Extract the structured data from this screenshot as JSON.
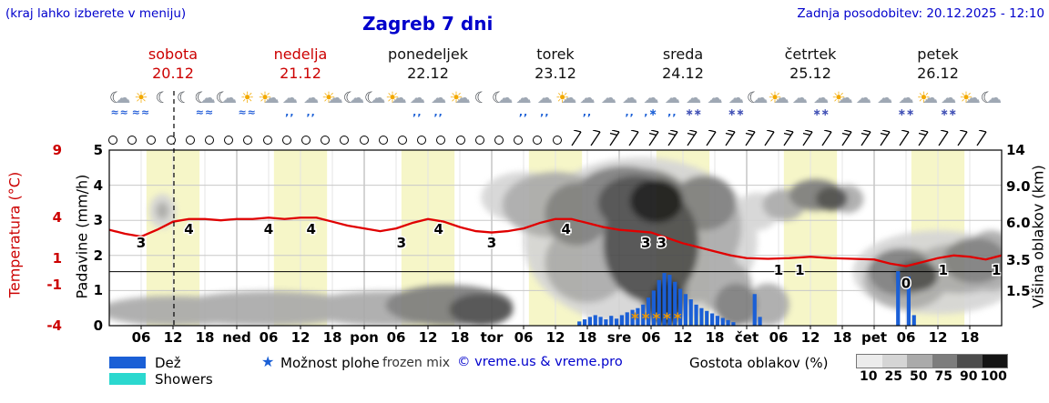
{
  "header": {
    "hint": "(kraj lahko izberete v meniju)",
    "title": "Zagreb 7 dni",
    "updated": "Zadnja posodobitev: 20.12.2025 - 12:10"
  },
  "days": [
    {
      "name": "sobota",
      "date": "20.12",
      "weekend": true
    },
    {
      "name": "nedelja",
      "date": "21.12",
      "weekend": true
    },
    {
      "name": "ponedeljek",
      "date": "22.12",
      "weekend": false
    },
    {
      "name": "torek",
      "date": "23.12",
      "weekend": false
    },
    {
      "name": "sreda",
      "date": "24.12",
      "weekend": false
    },
    {
      "name": "četrtek",
      "date": "25.12",
      "weekend": false
    },
    {
      "name": "petek",
      "date": "26.12",
      "weekend": false
    }
  ],
  "axes": {
    "temperature_label": "Temperatura (°C)",
    "temperature_ticks": [
      9,
      4,
      1,
      -1,
      -4
    ],
    "precip_label": "Padavine (mm/h)",
    "precip_ticks": [
      5,
      4,
      3,
      2,
      1,
      0
    ],
    "cloudheight_label": "Višina oblakov (km)",
    "cloudheight_ticks": [
      {
        "label": "14",
        "km": 14
      },
      {
        "label": "9.0",
        "km": 9
      },
      {
        "label": "6.0",
        "km": 6
      },
      {
        "label": "3.5",
        "km": 3.5
      },
      {
        "label": "1.5",
        "km": 1.5
      }
    ]
  },
  "xaxis": [
    "06",
    "12",
    "18",
    "ned",
    "06",
    "12",
    "18",
    "pon",
    "06",
    "12",
    "18",
    "tor",
    "06",
    "12",
    "18",
    "sre",
    "06",
    "12",
    "18",
    "čet",
    "06",
    "12",
    "18",
    "pet",
    "06",
    "12",
    "18"
  ],
  "icons": [
    "moon-fog",
    "sun-fog",
    "moon",
    "moon",
    "moon-fog",
    "moon-cloud",
    "sun-fog",
    "sun-cloud",
    "rain",
    "rain",
    "sun-cloud",
    "moon-cloud",
    "moon-cloud",
    "sun-cloud",
    "rain",
    "rain",
    "sun-cloud",
    "moon",
    "moon-cloud",
    "rain",
    "rain",
    "sun-cloud",
    "rain",
    "cloud",
    "rain",
    "sleet",
    "rain",
    "snow",
    "cloud",
    "snow",
    "moon-cloud",
    "sun-cloud",
    "cloud",
    "snow",
    "sun-cloud",
    "cloud",
    "cloud",
    "snow",
    "sun-cloud",
    "snow",
    "sun-cloud",
    "moon-cloud"
  ],
  "wind": [
    "calm",
    "calm",
    "calm",
    "calm",
    "calm",
    "calm",
    "calm",
    "calm",
    "calm",
    "calm",
    "calm",
    "calm",
    "calm",
    "calm",
    "calm",
    "calm",
    "calm",
    "calm",
    "calm",
    "calm",
    "calm",
    "calm",
    "calm",
    "calm",
    "barb1",
    "barb1",
    "barb2",
    "barb1",
    "barb2",
    "barb2",
    "barb2",
    "barb1",
    "barb2",
    "barb2",
    "barb1",
    "barb2",
    "barb2",
    "barb1",
    "barb2",
    "barb2",
    "barb2",
    "barb1",
    "barb2",
    "barb1",
    "barb1",
    "barb1"
  ],
  "legend": {
    "rain": "Dež",
    "showers": "Showers",
    "chance_icon": "★",
    "chance": "Možnost plohe",
    "frozen": "frozen mix",
    "copyright": "© vreme.us & vreme.pro",
    "cloud_density": "Gostota oblakov (%)",
    "density_ticks": [
      "10",
      "25",
      "50",
      "75",
      "90",
      "100"
    ]
  },
  "colors": {
    "blue_text": "#0000cc",
    "red_text": "#cc0000",
    "temp_line": "#e00000",
    "rain": "#1a5fd6",
    "showers": "#2bd8cf",
    "frozen": "#f09800",
    "dayband": "#f6f6c8",
    "density": {
      "10": "#ececec",
      "25": "#d5d5d5",
      "50": "#aaaaaa",
      "75": "#7d7d7d",
      "90": "#4c4c4c",
      "100": "#141414"
    }
  },
  "chart_data": {
    "type": "line",
    "title": "Zagreb 7 dni",
    "x_unit": "hours (7 days, 20.12–26.12)",
    "x_range": [
      0,
      168
    ],
    "now_hour": 12.17,
    "ylim_precip_mmh": [
      0,
      5
    ],
    "ylim_temp_c": [
      -4,
      9
    ],
    "cloud_axis_km": [
      0,
      1.5,
      3.5,
      6,
      9,
      14
    ],
    "zero_deg_line_c": 0,
    "series": [
      {
        "name": "Temperatura (°C)",
        "type": "line",
        "points": [
          [
            0,
            3.1
          ],
          [
            3,
            2.8
          ],
          [
            6,
            2.6
          ],
          [
            9,
            3.1
          ],
          [
            12,
            3.7
          ],
          [
            15,
            3.9
          ],
          [
            18,
            3.9
          ],
          [
            21,
            3.8
          ],
          [
            24,
            3.9
          ],
          [
            27,
            3.9
          ],
          [
            30,
            4.0
          ],
          [
            33,
            3.9
          ],
          [
            36,
            4.0
          ],
          [
            39,
            4.0
          ],
          [
            42,
            3.7
          ],
          [
            45,
            3.4
          ],
          [
            48,
            3.2
          ],
          [
            51,
            3.0
          ],
          [
            54,
            3.2
          ],
          [
            57,
            3.6
          ],
          [
            60,
            3.9
          ],
          [
            63,
            3.7
          ],
          [
            66,
            3.3
          ],
          [
            69,
            3.0
          ],
          [
            72,
            2.9
          ],
          [
            75,
            3.0
          ],
          [
            78,
            3.2
          ],
          [
            81,
            3.6
          ],
          [
            84,
            3.9
          ],
          [
            87,
            3.9
          ],
          [
            90,
            3.6
          ],
          [
            93,
            3.3
          ],
          [
            96,
            3.1
          ],
          [
            99,
            3.0
          ],
          [
            102,
            2.9
          ],
          [
            105,
            2.5
          ],
          [
            108,
            2.1
          ],
          [
            111,
            1.8
          ],
          [
            114,
            1.5
          ],
          [
            117,
            1.2
          ],
          [
            120,
            1.0
          ],
          [
            124,
            0.95
          ],
          [
            128,
            1.0
          ],
          [
            132,
            1.1
          ],
          [
            136,
            1.0
          ],
          [
            140,
            0.95
          ],
          [
            144,
            0.9
          ],
          [
            147,
            0.6
          ],
          [
            150,
            0.4
          ],
          [
            153,
            0.7
          ],
          [
            156,
            1.0
          ],
          [
            159,
            1.2
          ],
          [
            162,
            1.1
          ],
          [
            165,
            0.9
          ],
          [
            168,
            1.2
          ]
        ]
      },
      {
        "name": "Padavine (mm/h)",
        "type": "bar",
        "points": [
          [
            88,
            0.12
          ],
          [
            89,
            0.18
          ],
          [
            90,
            0.25
          ],
          [
            91,
            0.3
          ],
          [
            92,
            0.25
          ],
          [
            93,
            0.18
          ],
          [
            94,
            0.28
          ],
          [
            95,
            0.2
          ],
          [
            96,
            0.3
          ],
          [
            97,
            0.38
          ],
          [
            98,
            0.45
          ],
          [
            99,
            0.5
          ],
          [
            100,
            0.6
          ],
          [
            101,
            0.8
          ],
          [
            102,
            1.0
          ],
          [
            103,
            1.3
          ],
          [
            104,
            1.5
          ],
          [
            105,
            1.45
          ],
          [
            106,
            1.25
          ],
          [
            107,
            1.05
          ],
          [
            108,
            0.9
          ],
          [
            109,
            0.75
          ],
          [
            110,
            0.6
          ],
          [
            111,
            0.5
          ],
          [
            112,
            0.42
          ],
          [
            113,
            0.35
          ],
          [
            114,
            0.28
          ],
          [
            115,
            0.22
          ],
          [
            116,
            0.16
          ],
          [
            117,
            0.1
          ],
          [
            121,
            0.9
          ],
          [
            122,
            0.25
          ],
          [
            148,
            1.55
          ],
          [
            150,
            1.4
          ],
          [
            151,
            0.3
          ]
        ]
      },
      {
        "name": "Gostota oblakov (%)",
        "type": "blob",
        "points": [
          [
            24,
            0.5,
            26,
            0.8,
            25
          ],
          [
            12,
            0.5,
            14,
            0.8,
            50
          ],
          [
            30,
            0.6,
            18,
            0.9,
            50
          ],
          [
            52,
            0.6,
            16,
            0.9,
            50
          ],
          [
            64,
            0.8,
            12,
            1.1,
            75
          ],
          [
            70,
            0.6,
            6,
            0.8,
            90
          ],
          [
            10,
            7,
            2.5,
            1.4,
            25
          ],
          [
            10,
            7,
            1.2,
            0.7,
            50
          ],
          [
            78,
            8.5,
            8,
            2.5,
            25
          ],
          [
            84,
            8,
            10,
            3,
            50
          ],
          [
            88,
            7,
            6,
            2.5,
            75
          ],
          [
            90,
            3.5,
            8,
            2.5,
            50
          ],
          [
            100,
            6,
            22,
            7,
            25
          ],
          [
            98,
            7,
            14,
            4.5,
            50
          ],
          [
            100,
            8,
            10,
            3.5,
            75
          ],
          [
            97,
            9,
            9,
            2.8,
            75
          ],
          [
            99,
            8,
            7,
            2.5,
            90
          ],
          [
            103,
            8,
            5,
            2,
            100
          ],
          [
            102,
            5,
            9,
            4,
            90
          ],
          [
            104,
            2,
            4,
            2.5,
            90
          ],
          [
            105,
            1,
            3,
            1.2,
            100
          ],
          [
            106,
            3,
            3,
            3,
            75
          ],
          [
            110,
            4,
            8,
            3,
            50
          ],
          [
            112,
            8,
            6,
            2.5,
            75
          ],
          [
            114,
            6,
            5,
            3,
            50
          ],
          [
            116,
            2,
            5,
            1.5,
            50
          ],
          [
            118,
            1,
            4,
            1,
            75
          ],
          [
            121,
            0.7,
            3,
            0.8,
            50
          ],
          [
            122,
            7,
            4,
            1.5,
            25
          ],
          [
            124,
            1,
            4,
            1,
            50
          ],
          [
            127,
            7.5,
            4,
            1.3,
            50
          ],
          [
            133,
            8.5,
            5,
            1.5,
            75
          ],
          [
            136,
            8,
            3,
            1,
            90
          ],
          [
            139,
            8,
            3,
            1.2,
            50
          ],
          [
            156,
            3,
            16,
            2.5,
            25
          ],
          [
            150,
            2.5,
            8,
            1.8,
            50
          ],
          [
            149,
            2.8,
            6,
            1.5,
            75
          ],
          [
            152,
            2.5,
            4,
            1,
            90
          ],
          [
            160,
            3,
            9,
            1.6,
            50
          ],
          [
            163,
            3.5,
            6,
            1.5,
            75
          ],
          [
            166,
            3.5,
            5,
            2,
            50
          ]
        ]
      }
    ],
    "temp_labels": [
      [
        6,
        3
      ],
      [
        15,
        4
      ],
      [
        30,
        4
      ],
      [
        38,
        4
      ],
      [
        55,
        3
      ],
      [
        62,
        4
      ],
      [
        72,
        3
      ],
      [
        86,
        4
      ],
      [
        101,
        3
      ],
      [
        104,
        3
      ],
      [
        126,
        1
      ],
      [
        130,
        1
      ],
      [
        150,
        0
      ],
      [
        157,
        1
      ],
      [
        167,
        1
      ]
    ],
    "frozen_mix_hours": [
      99,
      101,
      103,
      105,
      107
    ]
  }
}
